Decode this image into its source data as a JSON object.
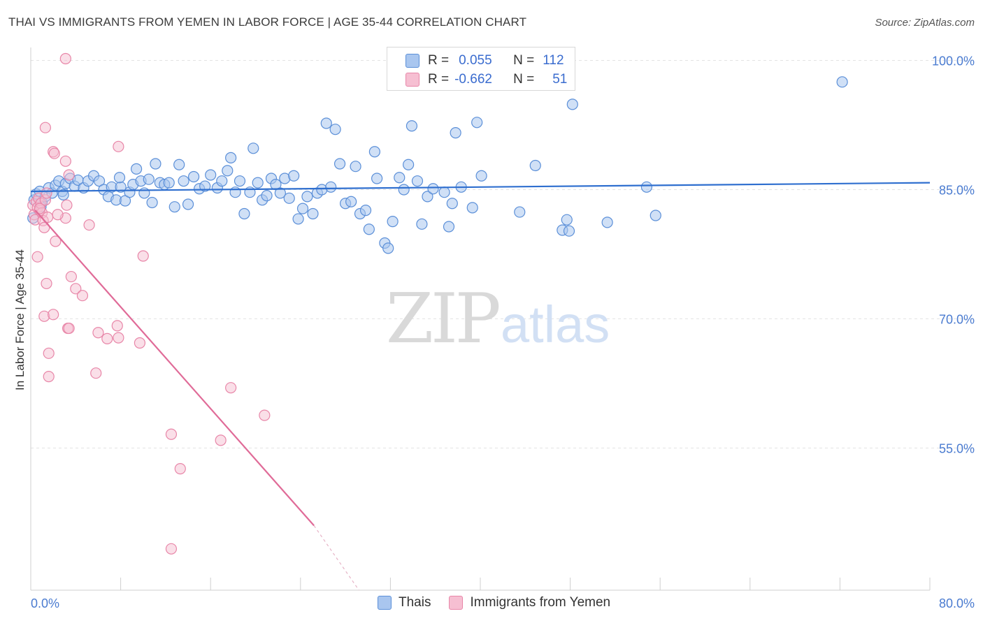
{
  "title": "THAI VS IMMIGRANTS FROM YEMEN IN LABOR FORCE | AGE 35-44 CORRELATION CHART",
  "source": "Source: ZipAtlas.com",
  "watermark": {
    "zip": "ZIP",
    "atlas": "atlas"
  },
  "legend": {
    "rows": [
      {
        "r_label": "R =",
        "r_value": "0.055",
        "n_label": "N =",
        "n_value": "112"
      },
      {
        "r_label": "R =",
        "r_value": "-0.662",
        "n_label": "N =",
        "n_value": "51"
      }
    ]
  },
  "colors": {
    "thai_fill": "#a9c6ef",
    "thai_stroke": "#5b8fd8",
    "thai_line": "#2f6fcf",
    "yemen_fill": "#f6bfd2",
    "yemen_stroke": "#e886a8",
    "yemen_line": "#e06b98",
    "tick_text": "#4a7bd0"
  },
  "chart_data": {
    "type": "scatter",
    "title": "THAI VS IMMIGRANTS FROM YEMEN IN LABOR FORCE | AGE 35-44 CORRELATION CHART",
    "xlabel": "",
    "ylabel": "In Labor Force | Age 35-44",
    "xlim": [
      0,
      80
    ],
    "ylim": [
      38.5,
      101.5
    ],
    "x_tick_labels": [
      "0.0%",
      "80.0%"
    ],
    "y_ticks": [
      55,
      70,
      85,
      100
    ],
    "y_tick_labels": [
      "55.0%",
      "70.0%",
      "85.0%",
      "100.0%"
    ],
    "grid": true,
    "series": [
      {
        "name": "Thais",
        "R": 0.055,
        "N": 112,
        "trend": {
          "x": [
            0,
            80
          ],
          "y": [
            84.8,
            85.8
          ]
        },
        "points": [
          [
            0.3,
            83.8
          ],
          [
            0.5,
            84.5
          ],
          [
            0.8,
            84.8
          ],
          [
            1.0,
            83.5
          ],
          [
            1.3,
            84.2
          ],
          [
            1.6,
            85.2
          ],
          [
            1.9,
            84.6
          ],
          [
            2.2,
            85.5
          ],
          [
            2.5,
            86.0
          ],
          [
            2.8,
            84.8
          ],
          [
            3.1,
            85.7
          ],
          [
            3.5,
            86.3
          ],
          [
            3.9,
            85.4
          ],
          [
            4.2,
            86.1
          ],
          [
            4.7,
            85.2
          ],
          [
            5.1,
            86.0
          ],
          [
            5.6,
            86.6
          ],
          [
            6.1,
            86.0
          ],
          [
            6.5,
            85.0
          ],
          [
            6.9,
            84.2
          ],
          [
            7.2,
            85.3
          ],
          [
            7.6,
            83.8
          ],
          [
            8.0,
            85.3
          ],
          [
            8.4,
            83.7
          ],
          [
            8.8,
            84.7
          ],
          [
            9.1,
            85.6
          ],
          [
            9.4,
            87.4
          ],
          [
            9.8,
            86.0
          ],
          [
            10.1,
            84.6
          ],
          [
            10.5,
            86.2
          ],
          [
            10.8,
            83.5
          ],
          [
            11.1,
            88.0
          ],
          [
            11.5,
            85.8
          ],
          [
            11.9,
            85.6
          ],
          [
            12.3,
            85.8
          ],
          [
            12.8,
            83.0
          ],
          [
            13.2,
            87.9
          ],
          [
            13.6,
            86.0
          ],
          [
            14.0,
            83.3
          ],
          [
            14.5,
            86.5
          ],
          [
            15.0,
            85.1
          ],
          [
            15.5,
            85.4
          ],
          [
            16.0,
            86.7
          ],
          [
            16.6,
            85.2
          ],
          [
            17.0,
            86.0
          ],
          [
            17.5,
            87.2
          ],
          [
            17.8,
            88.7
          ],
          [
            18.2,
            84.7
          ],
          [
            18.6,
            86.0
          ],
          [
            19.0,
            82.2
          ],
          [
            19.5,
            84.7
          ],
          [
            19.8,
            89.8
          ],
          [
            20.2,
            85.8
          ],
          [
            20.6,
            83.8
          ],
          [
            21.0,
            84.3
          ],
          [
            21.4,
            86.3
          ],
          [
            21.8,
            85.6
          ],
          [
            22.2,
            84.6
          ],
          [
            22.6,
            86.3
          ],
          [
            23.0,
            84.0
          ],
          [
            23.4,
            86.6
          ],
          [
            23.8,
            81.6
          ],
          [
            24.2,
            82.8
          ],
          [
            24.6,
            84.2
          ],
          [
            25.1,
            82.2
          ],
          [
            25.5,
            84.6
          ],
          [
            25.9,
            85.0
          ],
          [
            26.3,
            92.7
          ],
          [
            26.7,
            85.3
          ],
          [
            27.1,
            92.0
          ],
          [
            27.5,
            88.0
          ],
          [
            28.0,
            83.4
          ],
          [
            28.5,
            83.6
          ],
          [
            28.9,
            87.7
          ],
          [
            29.3,
            82.2
          ],
          [
            29.8,
            82.6
          ],
          [
            30.1,
            80.4
          ],
          [
            30.6,
            89.4
          ],
          [
            30.8,
            86.3
          ],
          [
            31.5,
            78.8
          ],
          [
            31.8,
            78.2
          ],
          [
            32.2,
            81.3
          ],
          [
            32.8,
            86.4
          ],
          [
            33.2,
            85.0
          ],
          [
            33.6,
            87.9
          ],
          [
            33.9,
            92.4
          ],
          [
            34.4,
            86.0
          ],
          [
            34.8,
            81.0
          ],
          [
            35.3,
            84.2
          ],
          [
            35.8,
            85.1
          ],
          [
            36.8,
            84.7
          ],
          [
            37.2,
            80.7
          ],
          [
            37.5,
            83.4
          ],
          [
            37.8,
            91.6
          ],
          [
            38.3,
            85.3
          ],
          [
            39.3,
            82.9
          ],
          [
            39.7,
            92.8
          ],
          [
            40.1,
            86.6
          ],
          [
            43.5,
            82.4
          ],
          [
            44.9,
            87.8
          ],
          [
            47.3,
            80.3
          ],
          [
            47.7,
            81.5
          ],
          [
            47.9,
            80.2
          ],
          [
            48.2,
            94.9
          ],
          [
            51.3,
            81.2
          ],
          [
            54.8,
            85.3
          ],
          [
            55.6,
            82.0
          ],
          [
            72.2,
            97.5
          ],
          [
            0.2,
            81.7
          ],
          [
            0.9,
            83.0
          ],
          [
            2.9,
            84.4
          ],
          [
            7.9,
            86.4
          ]
        ]
      },
      {
        "name": "Immigrants from Yemen",
        "R": -0.662,
        "N": 51,
        "trend": {
          "x": [
            0.4,
            25.2
          ],
          "y": [
            82.6,
            46.0
          ]
        },
        "trend_extension": {
          "x": [
            25.2,
            29.2
          ],
          "y": [
            46.0,
            38.5
          ]
        },
        "points": [
          [
            0.2,
            83.2
          ],
          [
            0.3,
            82.1
          ],
          [
            0.4,
            81.5
          ],
          [
            0.5,
            83.6
          ],
          [
            0.6,
            82.9
          ],
          [
            0.7,
            84.0
          ],
          [
            0.8,
            82.6
          ],
          [
            0.9,
            83.4
          ],
          [
            1.0,
            82.3
          ],
          [
            1.1,
            81.4
          ],
          [
            1.2,
            80.6
          ],
          [
            1.3,
            83.8
          ],
          [
            1.4,
            84.6
          ],
          [
            1.5,
            81.8
          ],
          [
            0.6,
            77.2
          ],
          [
            1.4,
            74.1
          ],
          [
            2.0,
            89.4
          ],
          [
            2.1,
            89.2
          ],
          [
            3.1,
            81.7
          ],
          [
            3.2,
            83.2
          ],
          [
            3.1,
            88.3
          ],
          [
            3.4,
            86.7
          ],
          [
            5.2,
            80.9
          ],
          [
            7.8,
            90.0
          ],
          [
            1.3,
            92.2
          ],
          [
            3.1,
            100.2
          ],
          [
            2.2,
            79.0
          ],
          [
            3.6,
            74.9
          ],
          [
            4.0,
            73.5
          ],
          [
            4.6,
            72.7
          ],
          [
            1.2,
            70.3
          ],
          [
            2.0,
            70.5
          ],
          [
            3.3,
            68.9
          ],
          [
            3.4,
            68.9
          ],
          [
            6.0,
            68.4
          ],
          [
            6.8,
            67.7
          ],
          [
            7.8,
            67.8
          ],
          [
            7.7,
            69.2
          ],
          [
            9.7,
            67.2
          ],
          [
            10.0,
            77.3
          ],
          [
            1.6,
            66.0
          ],
          [
            1.6,
            63.3
          ],
          [
            5.8,
            63.7
          ],
          [
            17.8,
            62.0
          ],
          [
            20.8,
            58.8
          ],
          [
            16.9,
            55.9
          ],
          [
            12.5,
            56.6
          ],
          [
            13.3,
            52.6
          ],
          [
            12.5,
            43.3
          ],
          [
            2.4,
            82.1
          ],
          [
            0.8,
            82.8
          ]
        ]
      }
    ]
  },
  "bottom_legend": [
    {
      "label": "Thais"
    },
    {
      "label": "Immigrants from Yemen"
    }
  ]
}
